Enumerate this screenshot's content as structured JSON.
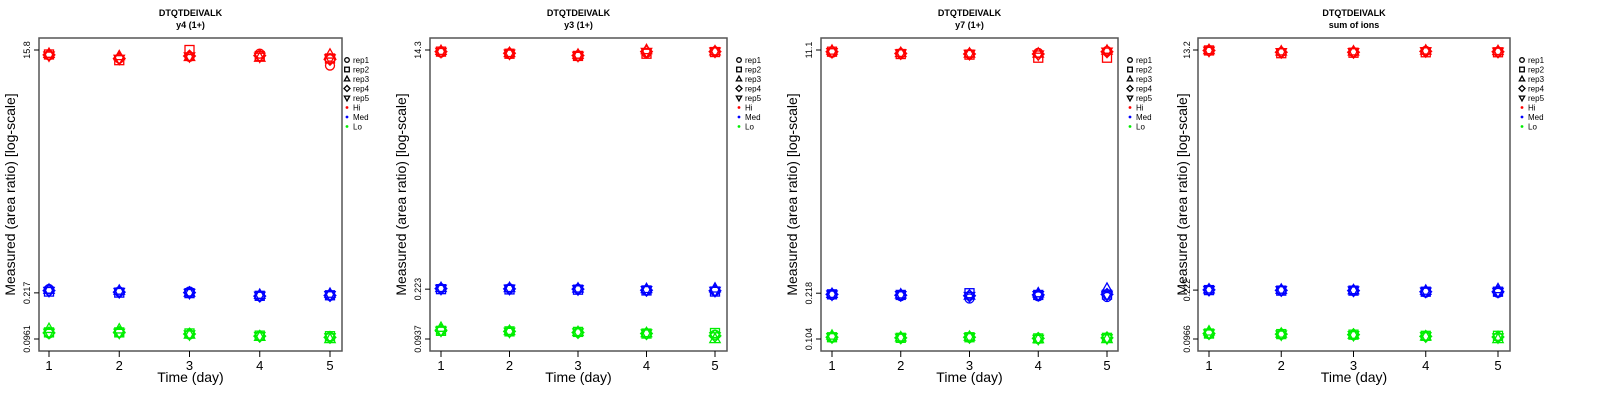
{
  "chart_data": [
    {
      "type": "scatter",
      "title": "DTQTDEIVALK",
      "subtitle": "y4 (1+)",
      "xlabel": "Time (day)",
      "ylabel": "Measured (area ratio) [log-scale]",
      "yscale": "log",
      "x": [
        1,
        2,
        3,
        4,
        5
      ],
      "x_ticks": [
        "1",
        "2",
        "3",
        "4",
        "5"
      ],
      "y_ticks": [
        "0.0961",
        "0.217",
        "15.8"
      ],
      "y_tick_values": [
        0.0961,
        0.217,
        15.8
      ],
      "series": {
        "Hi": {
          "rep1": [
            14.4,
            13.6,
            14.0,
            14.8,
            12.0
          ],
          "rep2": [
            14.6,
            13.2,
            15.8,
            14.2,
            13.6
          ],
          "rep3": [
            14.8,
            14.2,
            14.0,
            13.8,
            14.6
          ],
          "rep4": [
            14.5,
            13.6,
            14.2,
            14.3,
            13.4
          ],
          "rep5": [
            14.3,
            13.5,
            14.1,
            14.0,
            13.6
          ]
        },
        "Med": {
          "rep1": [
            0.232,
            0.222,
            0.222,
            0.204,
            0.206
          ],
          "rep2": [
            0.222,
            0.218,
            0.216,
            0.206,
            0.208
          ],
          "rep3": [
            0.23,
            0.226,
            0.218,
            0.21,
            0.214
          ],
          "rep4": [
            0.226,
            0.22,
            0.218,
            0.205,
            0.207
          ],
          "rep5": [
            0.224,
            0.22,
            0.216,
            0.206,
            0.208
          ]
        },
        "Lo": {
          "rep1": [
            0.106,
            0.107,
            0.104,
            0.101,
            0.1
          ],
          "rep2": [
            0.108,
            0.108,
            0.106,
            0.102,
            0.101
          ],
          "rep3": [
            0.115,
            0.114,
            0.104,
            0.1,
            0.096
          ],
          "rep4": [
            0.107,
            0.108,
            0.105,
            0.101,
            0.099
          ],
          "rep5": [
            0.107,
            0.107,
            0.104,
            0.101,
            0.099
          ]
        }
      }
    },
    {
      "type": "scatter",
      "title": "DTQTDEIVALK",
      "subtitle": "y3 (1+)",
      "xlabel": "Time (day)",
      "ylabel": "Measured (area ratio) [log-scale]",
      "yscale": "log",
      "x": [
        1,
        2,
        3,
        4,
        5
      ],
      "x_ticks": [
        "1",
        "2",
        "3",
        "4",
        "5"
      ],
      "y_ticks": [
        "0.0937",
        "0.223",
        "14.3"
      ],
      "y_tick_values": [
        0.0937,
        0.223,
        14.3
      ],
      "series": {
        "Hi": {
          "rep1": [
            13.7,
            13.3,
            12.8,
            13.6,
            13.9
          ],
          "rep2": [
            13.9,
            13.4,
            12.9,
            13.4,
            13.8
          ],
          "rep3": [
            14.1,
            13.6,
            13.2,
            14.3,
            14.0
          ],
          "rep4": [
            13.9,
            13.5,
            13.0,
            13.9,
            13.9
          ],
          "rep5": [
            13.8,
            13.4,
            12.9,
            13.8,
            13.9
          ]
        },
        "Med": {
          "rep1": [
            0.226,
            0.226,
            0.224,
            0.218,
            0.216
          ],
          "rep2": [
            0.223,
            0.222,
            0.221,
            0.218,
            0.214
          ],
          "rep3": [
            0.228,
            0.228,
            0.226,
            0.224,
            0.226
          ],
          "rep4": [
            0.225,
            0.224,
            0.223,
            0.219,
            0.217
          ],
          "rep5": [
            0.224,
            0.224,
            0.222,
            0.219,
            0.216
          ]
        },
        "Lo": {
          "rep1": [
            0.108,
            0.106,
            0.105,
            0.103,
            0.101
          ],
          "rep2": [
            0.108,
            0.107,
            0.106,
            0.103,
            0.104
          ],
          "rep3": [
            0.114,
            0.108,
            0.106,
            0.104,
            0.0937
          ],
          "rep4": [
            0.109,
            0.107,
            0.105,
            0.103,
            0.099
          ],
          "rep5": [
            0.108,
            0.106,
            0.105,
            0.103,
            0.098
          ]
        }
      }
    },
    {
      "type": "scatter",
      "title": "DTQTDEIVALK",
      "subtitle": "y7 (1+)",
      "xlabel": "Time (day)",
      "ylabel": "Measured (area ratio) [log-scale]",
      "yscale": "log",
      "x": [
        1,
        2,
        3,
        4,
        5
      ],
      "x_ticks": [
        "1",
        "2",
        "3",
        "4",
        "5"
      ],
      "y_ticks": [
        "0.104",
        "0.218",
        "11.1"
      ],
      "y_tick_values": [
        0.104,
        0.218,
        11.1
      ],
      "series": {
        "Hi": {
          "rep1": [
            10.6,
            10.5,
            10.4,
            10.6,
            10.9
          ],
          "rep2": [
            10.8,
            10.4,
            10.3,
            9.8,
            9.8
          ],
          "rep3": [
            11.0,
            10.6,
            10.5,
            10.5,
            11.0
          ],
          "rep4": [
            10.8,
            10.5,
            10.4,
            10.4,
            10.8
          ],
          "rep5": [
            10.7,
            10.5,
            10.4,
            10.3,
            10.8
          ]
        },
        "Med": {
          "rep1": [
            0.212,
            0.208,
            0.2,
            0.207,
            0.205
          ],
          "rep2": [
            0.214,
            0.212,
            0.218,
            0.212,
            0.213
          ],
          "rep3": [
            0.216,
            0.214,
            0.21,
            0.218,
            0.235
          ],
          "rep4": [
            0.214,
            0.211,
            0.209,
            0.212,
            0.214
          ],
          "rep5": [
            0.213,
            0.211,
            0.208,
            0.211,
            0.212
          ]
        },
        "Lo": {
          "rep1": [
            0.106,
            0.106,
            0.106,
            0.104,
            0.106
          ],
          "rep2": [
            0.107,
            0.106,
            0.107,
            0.105,
            0.106
          ],
          "rep3": [
            0.11,
            0.107,
            0.108,
            0.104,
            0.104
          ],
          "rep4": [
            0.107,
            0.106,
            0.107,
            0.105,
            0.106
          ],
          "rep5": [
            0.107,
            0.106,
            0.107,
            0.104,
            0.105
          ]
        }
      }
    },
    {
      "type": "scatter",
      "title": "DTQTDEIVALK",
      "subtitle": "sum of ions",
      "xlabel": "Time (day)",
      "ylabel": "Measured (area ratio) [log-scale]",
      "yscale": "log",
      "x": [
        1,
        2,
        3,
        4,
        5
      ],
      "x_ticks": [
        "1",
        "2",
        "3",
        "4",
        "5"
      ],
      "y_ticks": [
        "0.0966",
        "0.222",
        "13.2"
      ],
      "y_tick_values": [
        0.0966,
        0.222,
        13.2
      ],
      "series": {
        "Hi": {
          "rep1": [
            13.0,
            12.7,
            12.7,
            13.0,
            12.8
          ],
          "rep2": [
            13.1,
            12.5,
            12.6,
            12.7,
            12.7
          ],
          "rep3": [
            13.2,
            12.9,
            12.9,
            13.1,
            13.0
          ],
          "rep4": [
            13.1,
            12.7,
            12.7,
            12.9,
            12.8
          ],
          "rep5": [
            13.0,
            12.7,
            12.7,
            12.9,
            12.8
          ]
        },
        "Med": {
          "rep1": [
            0.222,
            0.22,
            0.22,
            0.213,
            0.212
          ],
          "rep2": [
            0.222,
            0.22,
            0.22,
            0.216,
            0.216
          ],
          "rep3": [
            0.225,
            0.224,
            0.222,
            0.22,
            0.226
          ],
          "rep4": [
            0.223,
            0.221,
            0.22,
            0.216,
            0.216
          ],
          "rep5": [
            0.222,
            0.221,
            0.22,
            0.216,
            0.215
          ]
        },
        "Lo": {
          "rep1": [
            0.105,
            0.104,
            0.103,
            0.101,
            0.1
          ],
          "rep2": [
            0.106,
            0.105,
            0.104,
            0.102,
            0.102
          ],
          "rep3": [
            0.11,
            0.106,
            0.104,
            0.101,
            0.0966
          ],
          "rep4": [
            0.106,
            0.105,
            0.104,
            0.101,
            0.1
          ],
          "rep5": [
            0.106,
            0.104,
            0.103,
            0.101,
            0.099
          ]
        }
      }
    }
  ],
  "legend": {
    "placement": "right",
    "reps": [
      {
        "key": "rep1",
        "label": "rep1",
        "shape": "circle"
      },
      {
        "key": "rep2",
        "label": "rep2",
        "shape": "square"
      },
      {
        "key": "rep3",
        "label": "rep3",
        "shape": "triangle-up"
      },
      {
        "key": "rep4",
        "label": "rep4",
        "shape": "diamond"
      },
      {
        "key": "rep5",
        "label": "rep5",
        "shape": "triangle-down"
      }
    ],
    "levels": [
      {
        "key": "Hi",
        "label": "Hi",
        "color": "#ff0000"
      },
      {
        "key": "Med",
        "label": "Med",
        "color": "#0000ff"
      },
      {
        "key": "Lo",
        "label": "Lo",
        "color": "#00ee00"
      }
    ]
  }
}
